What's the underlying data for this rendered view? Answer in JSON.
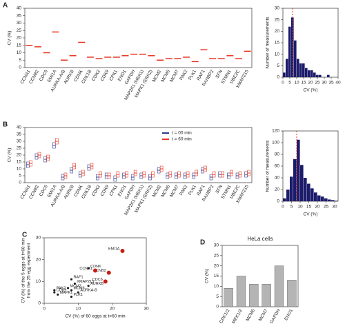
{
  "chart_data": [
    {
      "type": "strip",
      "label": "A",
      "ylabel": "CV (%)",
      "categories": [
        "CCNA1",
        "CCNB2",
        "CDC6",
        "EMI1A",
        "AURKA-A/B",
        "AURKB",
        "CDNK",
        "CDK1B",
        "CDK2",
        "CDK9",
        "CPK1",
        "ENO1",
        "GAPDH",
        "MAP2K1 (MEK1)",
        "MAPK1 (ERK2)",
        "MCM2",
        "MCM6",
        "MCM7",
        "PAK2",
        "PLK1",
        "RAF1",
        "RANBP2",
        "SFN",
        "STMN1",
        "UBE2C",
        "XMAP215"
      ],
      "values": [
        15,
        14,
        10,
        24,
        5,
        8,
        17,
        7,
        6,
        7,
        7,
        8,
        9,
        9,
        8,
        5,
        6,
        6,
        7,
        4,
        12,
        6,
        6,
        8,
        6,
        11
      ],
      "color": "#e8321e",
      "ylim": [
        0,
        40
      ],
      "yticks": [
        0,
        5,
        10,
        15,
        20,
        25,
        30,
        35,
        40
      ]
    },
    {
      "type": "histogram",
      "xlabel": "CV (%)",
      "ylabel": "Number of measurements",
      "bins": [
        0,
        2,
        4,
        6,
        8,
        10,
        12,
        14,
        16,
        18,
        20,
        22,
        24,
        26,
        28,
        30,
        32,
        34
      ],
      "values": [
        2,
        8,
        22,
        26,
        16,
        8,
        6,
        6,
        4,
        3,
        3,
        2,
        1,
        1,
        0,
        0,
        1
      ],
      "color": "#1c1c6b",
      "median_line": 7,
      "median_color": "#e8321e",
      "xlim": [
        0,
        40
      ],
      "xticks": [
        0,
        5,
        10,
        15,
        20,
        25,
        30,
        35,
        40
      ],
      "ylim": [
        0,
        30
      ],
      "yticks": [
        0,
        5,
        10,
        15,
        20,
        25,
        30
      ]
    },
    {
      "type": "strip",
      "label": "B",
      "ylabel": "CV (%)",
      "categories": [
        "CCNA1",
        "CCNB2",
        "CDC6",
        "EMI1A",
        "AURKA-A/B",
        "AURKB",
        "CDNK",
        "CDK1B",
        "CDK2",
        "CDK9",
        "CPK1",
        "ENO1",
        "GAPDH",
        "MAP2K1 (MEK1)",
        "MAPK1 (ERK2)",
        "MCM2",
        "MCM6",
        "MCM7",
        "PAK2",
        "PLK1",
        "RAF1",
        "RANBP2",
        "SFN",
        "STMN1",
        "UBE2C",
        "XMAP215"
      ],
      "series": [
        {
          "name": "t = 00 min",
          "color": "#2b3a8c",
          "values": [
            13,
            19,
            17,
            27,
            4,
            9,
            6,
            11,
            4,
            5,
            3,
            5,
            4,
            5,
            4,
            9,
            5,
            5,
            5,
            5,
            9,
            4,
            6,
            5,
            5,
            6
          ]
        },
        {
          "name": "t = 60 min",
          "color": "#e8321e",
          "values": [
            14,
            20,
            18,
            30,
            5,
            12,
            7,
            12,
            6,
            5,
            6,
            6,
            7,
            6,
            6,
            10,
            6,
            6,
            6,
            7,
            10,
            6,
            6,
            7,
            6,
            7
          ]
        }
      ],
      "ylim": [
        0,
        40
      ],
      "yticks": [
        0,
        5,
        10,
        15,
        20,
        25,
        30,
        35,
        40
      ]
    },
    {
      "type": "histogram",
      "xlabel": "CV (%)",
      "ylabel": "Number of measurements",
      "bins": [
        0,
        2,
        4,
        6,
        8,
        10,
        12,
        14,
        16,
        18,
        20,
        22,
        24,
        26,
        28,
        30,
        32
      ],
      "values": [
        5,
        20,
        42,
        72,
        105,
        62,
        40,
        30,
        22,
        15,
        10,
        8,
        5,
        3,
        2,
        1
      ],
      "color": "#1c1c6b",
      "median_line": 8,
      "median_color": "#e8321e",
      "xlim": [
        0,
        32
      ],
      "xticks": [
        0,
        5,
        10,
        15,
        20,
        25,
        30
      ],
      "ylim": [
        0,
        120
      ],
      "yticks": [
        0,
        20,
        40,
        60,
        80,
        100,
        120
      ]
    },
    {
      "type": "scatter",
      "label": "C",
      "xlabel": "CV (%) of 60 eggs at t=60 min",
      "ylabel": [
        "CV (%) of the 5 eggs at t=60 min",
        "from the 25 egg experiment"
      ],
      "x": [
        23,
        19,
        18,
        15,
        13,
        8,
        9,
        13,
        3,
        3,
        4,
        8,
        10,
        8,
        7
      ],
      "values": [
        24,
        14,
        10,
        15,
        16,
        11,
        9,
        8,
        6,
        5,
        4,
        6,
        5,
        3,
        7
      ],
      "labels": [
        "EMI1A",
        "CCNB2",
        "CDC6",
        "CCNA1",
        "CDNK",
        "RAF1",
        "XMAP215",
        "AURKB",
        "PAK2",
        "CDK9",
        "MAPK1",
        "MCM6",
        "AURKA-B",
        "PLK1",
        "MCM2"
      ],
      "colors": [
        "#c81e14",
        "#c81e14",
        "#c81e14",
        "#c81e14",
        "#222",
        "#222",
        "#222",
        "#222",
        "#222",
        "#222",
        "#222",
        "#222",
        "#222",
        "#222",
        "#222"
      ],
      "xlim": [
        0,
        30
      ],
      "xticks": [
        0,
        10,
        20,
        30
      ],
      "ylim": [
        0,
        30
      ],
      "yticks": [
        0,
        10,
        20,
        30
      ]
    },
    {
      "type": "bar",
      "label": "D",
      "title": "HeLa cells",
      "ylabel": "CV (%)",
      "categories": [
        "CDK1/2",
        "MEK1/2",
        "MCM6",
        "MCM7",
        "GAPDH",
        "ENO1"
      ],
      "values": [
        9,
        15,
        11,
        11,
        20,
        13
      ],
      "color": "#b4b4b4",
      "ylim": [
        0,
        30
      ],
      "yticks": [
        0,
        5,
        10,
        15,
        20,
        25,
        30
      ]
    }
  ]
}
